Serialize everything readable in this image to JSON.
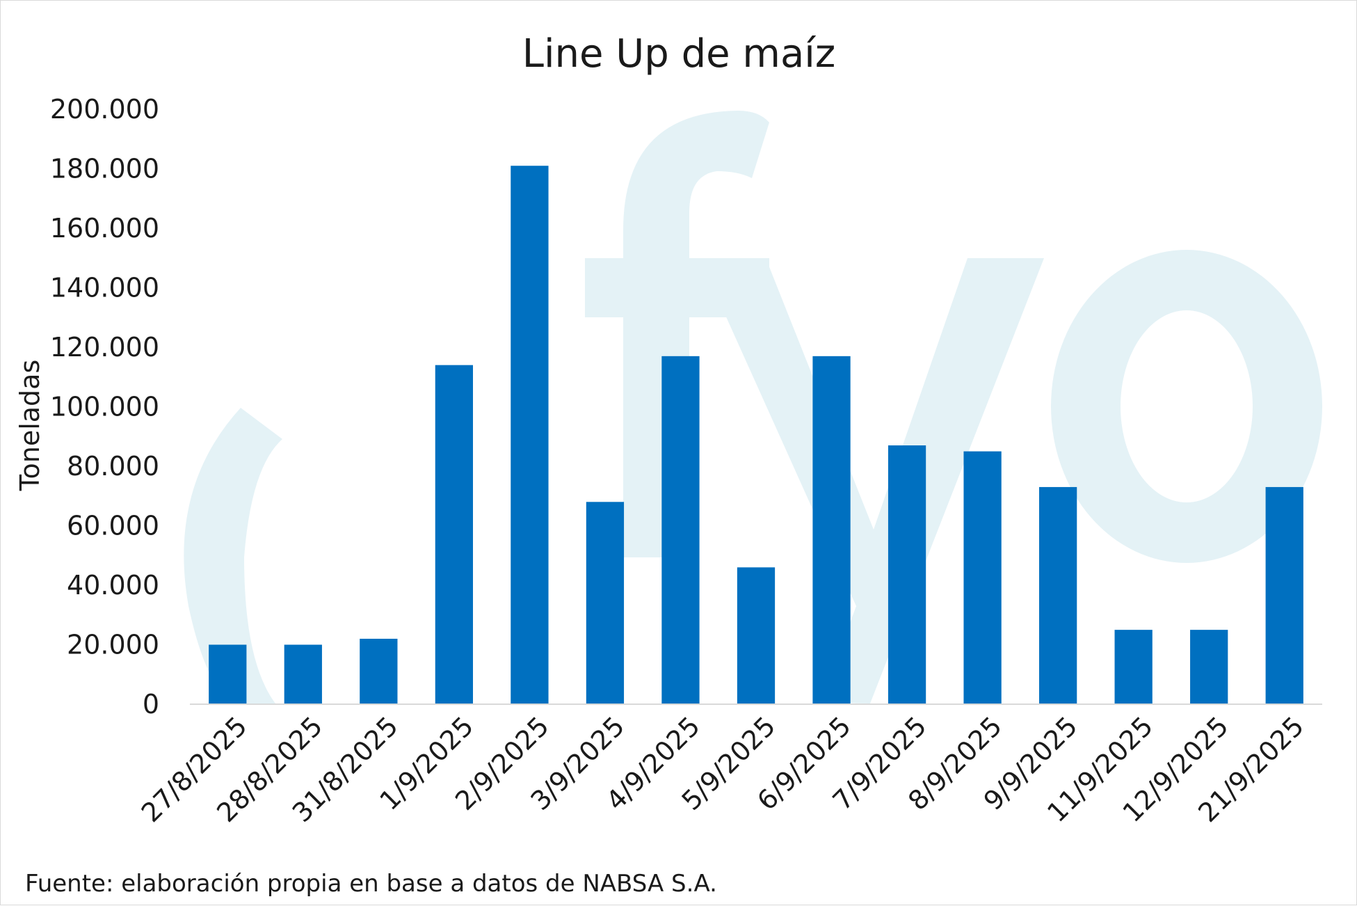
{
  "colors": {
    "bar": "#0070c0",
    "watermark": "#e4f2f6",
    "axis": "#d9d9d9"
  },
  "chart_data": {
    "type": "bar",
    "title": "Line Up de maíz",
    "ylabel": "Toneladas",
    "xlabel": "",
    "ylim": [
      0,
      200000
    ],
    "yticks": [
      "0",
      "20.000",
      "40.000",
      "60.000",
      "80.000",
      "100.000",
      "120.000",
      "140.000",
      "160.000",
      "180.000",
      "200.000"
    ],
    "categories": [
      "27/8/2025",
      "28/8/2025",
      "31/8/2025",
      "1/9/2025",
      "2/9/2025",
      "3/9/2025",
      "4/9/2025",
      "5/9/2025",
      "6/9/2025",
      "7/9/2025",
      "8/9/2025",
      "9/9/2025",
      "11/9/2025",
      "12/9/2025",
      "21/9/2025"
    ],
    "values": [
      20000,
      20000,
      22000,
      114000,
      181000,
      68000,
      117000,
      46000,
      117000,
      87000,
      85000,
      73000,
      25000,
      25000,
      73000
    ],
    "grid": false,
    "legend": "none"
  },
  "watermark": {
    "icon": "fyo-logo-watermark"
  },
  "footer": {
    "source": "Fuente: elaboración propia en base a datos de NABSA S.A."
  }
}
